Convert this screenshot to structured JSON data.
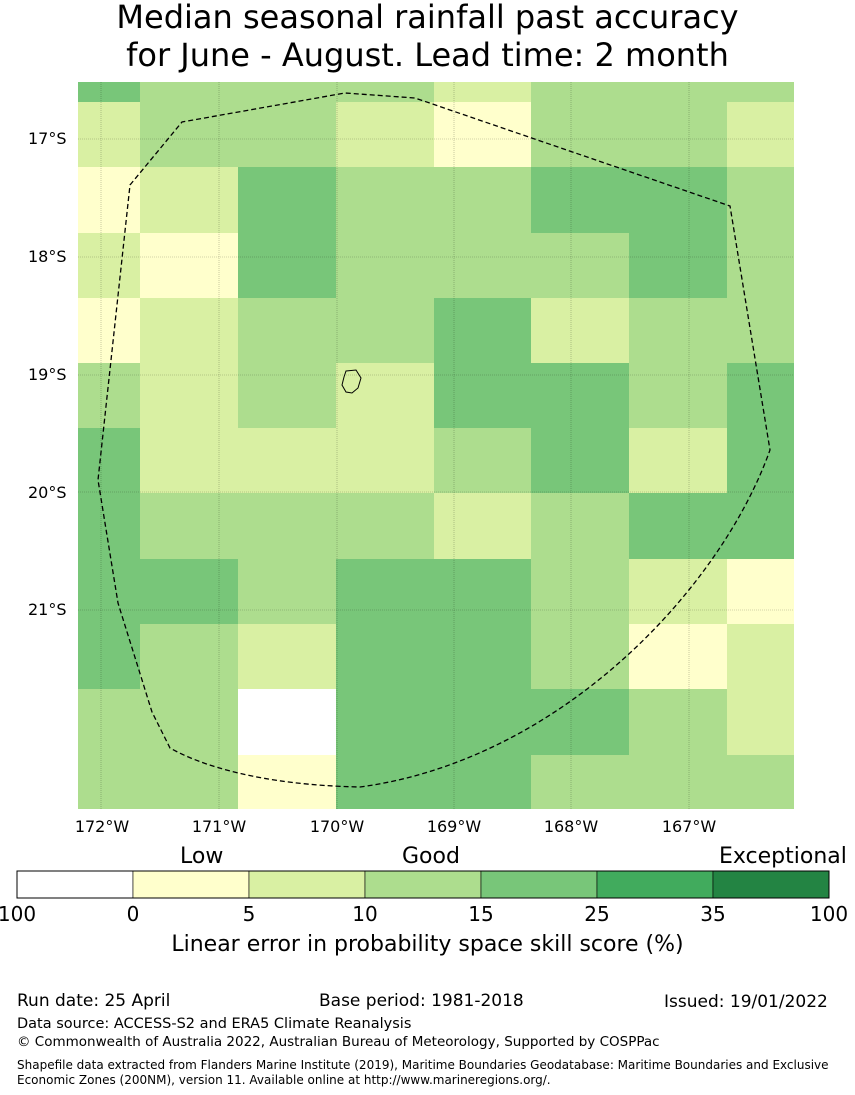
{
  "title": {
    "line1": "Median seasonal rainfall past accuracy",
    "line2": "for June - August. Lead time: 2 month"
  },
  "map": {
    "lat_labels": [
      "17°S",
      "18°S",
      "19°S",
      "20°S",
      "21°S"
    ],
    "lon_labels": [
      "172°W",
      "171°W",
      "170°W",
      "169°W",
      "168°W",
      "167°W"
    ],
    "grid_classes": [
      [
        "c25",
        "c15",
        "c15",
        "c15",
        "c10",
        "c15",
        "c15",
        "c15"
      ],
      [
        "c10",
        "c15",
        "c15",
        "c10",
        "c5",
        "c15",
        "c15",
        "c10"
      ],
      [
        "c5",
        "c10",
        "c25",
        "c15",
        "c15",
        "c25",
        "c25",
        "c15"
      ],
      [
        "c10",
        "c5",
        "c25",
        "c15",
        "c15",
        "c15",
        "c25",
        "c15"
      ],
      [
        "c5",
        "c10",
        "c15",
        "c15",
        "c25",
        "c10",
        "c15",
        "c15"
      ],
      [
        "c15",
        "c10",
        "c15",
        "c10",
        "c25",
        "c25",
        "c15",
        "c25"
      ],
      [
        "c25",
        "c10",
        "c10",
        "c10",
        "c15",
        "c25",
        "c10",
        "c25"
      ],
      [
        "c25",
        "c15",
        "c15",
        "c15",
        "c10",
        "c15",
        "c25",
        "c25"
      ],
      [
        "c25",
        "c25",
        "c15",
        "c25",
        "c25",
        "c15",
        "c10",
        "c5"
      ],
      [
        "c25",
        "c15",
        "c10",
        "c25",
        "c25",
        "c15",
        "c5",
        "c10"
      ],
      [
        "c15",
        "c15",
        "c0",
        "c25",
        "c25",
        "c25",
        "c15",
        "c10"
      ],
      [
        "c15",
        "c15",
        "c5",
        "c25",
        "c25",
        "c15",
        "c15",
        "c15"
      ]
    ]
  },
  "legend": {
    "categories": [
      "Low",
      "Good",
      "Exceptional"
    ],
    "tick_labels": [
      "100",
      "0",
      "5",
      "10",
      "15",
      "25",
      "35",
      "100"
    ],
    "colors": [
      "#ffffff",
      "#ffffcc",
      "#d9f0a3",
      "#addd8e",
      "#78c679",
      "#41ab5d",
      "#238443"
    ],
    "class_keys": [
      "c0",
      "c5",
      "c10",
      "c15",
      "c25",
      "c35",
      "c100"
    ],
    "axis_label": "Linear error in probability space skill score (%)"
  },
  "footer": {
    "run_date": "Run date: 25 April",
    "base_period": "Base period: 1981-2018",
    "issued": "Issued: 19/01/2022",
    "data_source": "Data source: ACCESS-S2 and ERA5 Climate Reanalysis",
    "copyright": "© Commonwealth of Australia 2022, Australian Bureau of Meteorology, Supported by COSPPac",
    "shapefile_line1": "Shapefile data extracted from Flanders Marine Institute (2019), Maritime Boundaries Geodatabase: Maritime Boundaries and Exclusive",
    "shapefile_line2": "Economic Zones (200NM), version 11. Available online at http://www.marineregions.org/."
  }
}
